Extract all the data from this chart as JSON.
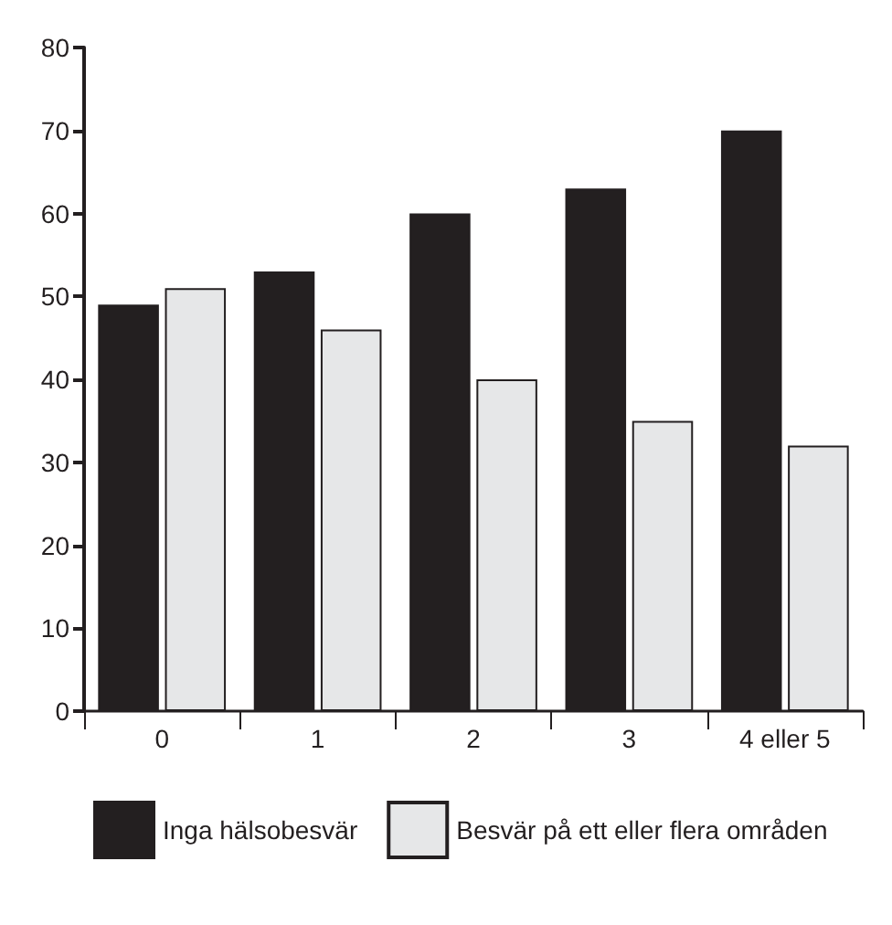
{
  "chart_data": {
    "type": "bar",
    "categories": [
      "0",
      "1",
      "2",
      "3",
      "4 eller 5"
    ],
    "series": [
      {
        "name": "Inga hälsobesvär",
        "color": "#231f20",
        "values": [
          49,
          53,
          60,
          63,
          70
        ]
      },
      {
        "name": "Besvär på ett eller flera områden",
        "color": "#e6e7e8",
        "values": [
          51,
          46,
          40,
          35,
          32
        ]
      }
    ],
    "ylim": [
      0,
      80
    ],
    "yticks": [
      0,
      10,
      20,
      30,
      40,
      50,
      60,
      70,
      80
    ],
    "grid": false,
    "legend": "bottom"
  }
}
